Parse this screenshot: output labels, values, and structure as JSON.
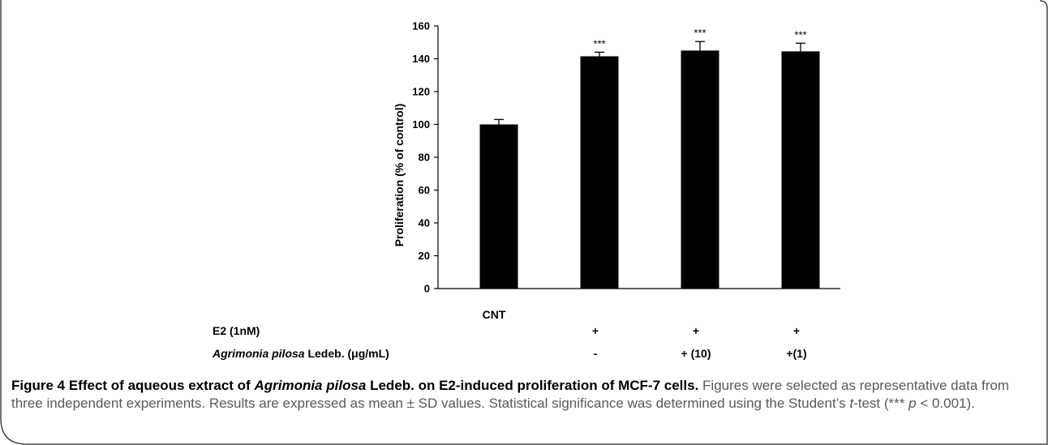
{
  "chart_data": {
    "type": "bar",
    "categories": [
      "CNT",
      "E2 + extract -",
      "E2 + extract (10)",
      "E2 + extract (1)"
    ],
    "values": [
      100,
      141.5,
      145,
      144.5
    ],
    "error": [
      3,
      2.5,
      5.5,
      5
    ],
    "significance": [
      "",
      "***",
      "***",
      "***"
    ],
    "ylabel": "Proliferation (% of control)",
    "ylim": [
      0,
      160
    ],
    "yticks": [
      0,
      20,
      40,
      60,
      80,
      100,
      120,
      140,
      160
    ],
    "xlabels": [
      "CNT",
      "",
      "",
      ""
    ],
    "grid": false,
    "bar_color": "#000000"
  },
  "treatment_table": {
    "rows": [
      {
        "label": "E2 (1nM)",
        "values": [
          "",
          "+",
          "+",
          "+"
        ]
      },
      {
        "label_italic": "Agrimonia pilosa",
        "label_rest": " Ledeb. (μg/mL)",
        "values": [
          "",
          "-",
          "+ (10)",
          "+(1)"
        ]
      }
    ]
  },
  "caption": {
    "lead_1": "Figure 4 Effect of aqueous extract of ",
    "lead_italic": "Agrimonia pilosa",
    "lead_2": " Ledeb. on E2-induced proliferation of MCF-7 cells.",
    "body_1": " Figures were selected as representative data from three independent experiments. Results are expressed as mean ± SD values. Statistical significance was determined using the Student’s ",
    "body_italic_t": "t",
    "body_2": "-test (*** ",
    "body_italic_p": "p",
    "body_3": " < 0.001)."
  }
}
